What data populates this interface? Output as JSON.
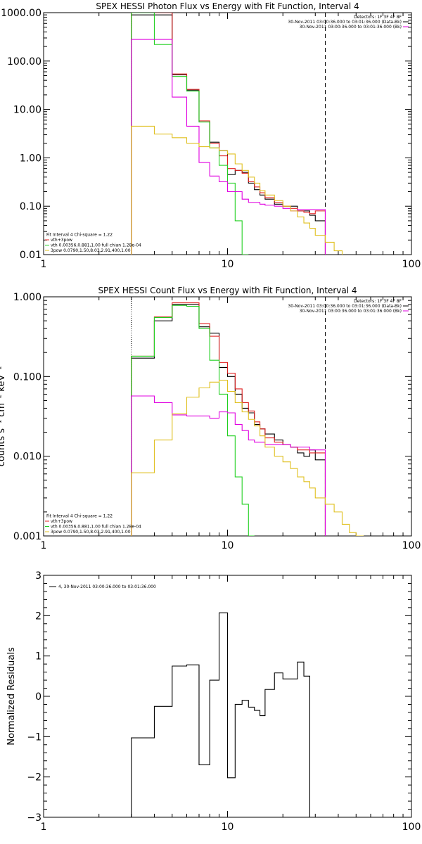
{
  "chart_data": [
    {
      "type": "line",
      "title": "SPEX HESSI Photon Flux vs Energy with Fit Function, Interval 4",
      "xscale": "log",
      "yscale": "log",
      "xlim": [
        1,
        100
      ],
      "ylim": [
        0.01,
        1000
      ],
      "xticks": [
        {
          "v": 1,
          "label": "1"
        },
        {
          "v": 10,
          "label": "10"
        },
        {
          "v": 100,
          "label": "100"
        }
      ],
      "yticks": [
        {
          "v": 0.01,
          "label": "0.01"
        },
        {
          "v": 0.1,
          "label": "0.10"
        },
        {
          "v": 1,
          "label": "1.00"
        },
        {
          "v": 10,
          "label": "10.00"
        },
        {
          "v": 100,
          "label": "100.00"
        },
        {
          "v": 1000,
          "label": "1000.00"
        }
      ],
      "legend_top_right": [
        "Detectors: 1F 3F 4F 8F",
        "30-Nov-2011 03:00:36.000 to 03:01:36.000 (Data-Bk)",
        "30-Nov-2011 03:00:36.000 to 03:01:36.000 (Bk)"
      ],
      "legend_top_right_colors": [
        null,
        "#000000",
        "#e000e0"
      ],
      "legend_bottom_left": [
        "Fit Interval 4   Chi-square = 1.22",
        "vth+3pow",
        "vth 0.00356,0.881,1.00   full chian 1.28e-04",
        "3pow 0.0790,1.50,8.03,2.91,400,1.00"
      ],
      "legend_bottom_left_colors": [
        null,
        "#e02020",
        "#20d020",
        "#e0c020"
      ],
      "vlines": [
        {
          "x": 3,
          "style": "dotted"
        },
        {
          "x": 34,
          "style": "dashed"
        }
      ],
      "edges": [
        3,
        4,
        5,
        6,
        7,
        8,
        9,
        10,
        11,
        12,
        13,
        14,
        15,
        16,
        18,
        20,
        22,
        24,
        26,
        28,
        30,
        34,
        38,
        42,
        46
      ],
      "series": [
        {
          "color": "#000000",
          "values": [
            900,
            900,
            52,
            25,
            5.5,
            2.1,
            1.4,
            0.45,
            0.55,
            0.5,
            0.3,
            0.22,
            0.17,
            0.14,
            0.11,
            0.1,
            0.1,
            0.08,
            0.08,
            0.065,
            0.05,
            null,
            null,
            null
          ]
        },
        {
          "color": "#e02020",
          "values": [
            1000,
            1000,
            54,
            26,
            5.8,
            2.0,
            1.1,
            0.6,
            0.55,
            0.48,
            0.32,
            0.25,
            0.19,
            0.15,
            0.12,
            0.1,
            0.09,
            0.08,
            0.075,
            0.07,
            0.08,
            null,
            null,
            null
          ]
        },
        {
          "color": "#20d020",
          "values": [
            1000,
            220,
            48,
            24,
            5.5,
            1.6,
            0.7,
            0.3,
            0.05,
            0.01,
            null,
            null,
            null,
            null,
            null,
            null,
            null,
            null,
            null,
            null,
            null,
            null,
            null,
            null
          ]
        },
        {
          "color": "#e000e0",
          "values": [
            280,
            280,
            18,
            4.5,
            0.8,
            0.42,
            0.32,
            0.2,
            0.2,
            0.14,
            0.12,
            0.12,
            0.11,
            0.105,
            0.1,
            0.09,
            0.08,
            0.085,
            0.085,
            0.085,
            0.085,
            null,
            null,
            null
          ]
        },
        {
          "color": "#e0c020",
          "values": [
            4.5,
            3.1,
            2.6,
            2.0,
            1.7,
            1.6,
            1.4,
            1.2,
            0.75,
            0.55,
            0.4,
            0.3,
            0.21,
            0.17,
            0.13,
            0.1,
            0.08,
            0.06,
            0.045,
            0.035,
            0.025,
            0.018,
            0.012,
            null
          ]
        }
      ]
    },
    {
      "type": "line",
      "title": "SPEX HESSI Count Flux vs Energy with Fit Function, Interval 4",
      "ylabel": "counts s⁻¹ cm⁻² keV⁻¹",
      "xscale": "log",
      "yscale": "log",
      "xlim": [
        1,
        100
      ],
      "ylim": [
        0.001,
        1
      ],
      "xticks": [
        {
          "v": 1,
          "label": "1"
        },
        {
          "v": 10,
          "label": "10"
        },
        {
          "v": 100,
          "label": "100"
        }
      ],
      "yticks": [
        {
          "v": 0.001,
          "label": "0.001"
        },
        {
          "v": 0.01,
          "label": "0.010"
        },
        {
          "v": 0.1,
          "label": "0.100"
        },
        {
          "v": 1,
          "label": "1.000"
        }
      ],
      "legend_top_right": [
        "Detectors: 1F 3F 4F 8F",
        "30-Nov-2011 03:00:36.000 to 03:01:36.000 (Data-Bk)",
        "30-Nov-2011 03:00:36.000 to 03:01:36.000 (Bk)"
      ],
      "legend_top_right_colors": [
        null,
        "#000000",
        "#e000e0"
      ],
      "legend_bottom_left": [
        "Fit Interval 4   Chi-square = 1.22",
        "vth+3pow",
        "vth 0.00356,0.881,1.00   full chian 1.28e-04",
        "3pow 0.0790,1.50,8.03,2.91,400,1.00"
      ],
      "legend_bottom_left_colors": [
        null,
        "#e02020",
        "#20d020",
        "#e0c020"
      ],
      "vlines": [
        {
          "x": 3,
          "style": "dotted"
        },
        {
          "x": 34,
          "style": "dashed"
        }
      ],
      "edges": [
        3,
        4,
        5,
        6,
        7,
        8,
        9,
        10,
        11,
        12,
        13,
        14,
        15,
        16,
        18,
        20,
        22,
        24,
        26,
        28,
        30,
        34,
        38,
        42,
        46,
        50,
        55
      ],
      "series": [
        {
          "color": "#000000",
          "values": [
            0.17,
            0.5,
            0.8,
            0.8,
            0.42,
            0.35,
            0.13,
            0.1,
            0.06,
            0.04,
            0.035,
            0.025,
            0.022,
            0.019,
            0.016,
            0.014,
            0.013,
            0.011,
            0.01,
            0.012,
            0.009,
            null,
            null,
            null,
            null,
            null
          ]
        },
        {
          "color": "#e02020",
          "values": [
            0.18,
            0.56,
            0.84,
            0.84,
            0.46,
            0.32,
            0.15,
            0.11,
            0.07,
            0.047,
            0.037,
            0.027,
            0.022,
            0.017,
            0.015,
            0.014,
            0.013,
            0.012,
            0.012,
            0.011,
            0.011,
            null,
            null,
            null,
            null,
            null
          ]
        },
        {
          "color": "#20d020",
          "values": [
            0.18,
            0.55,
            0.78,
            0.76,
            0.4,
            0.16,
            0.06,
            0.018,
            0.0055,
            0.0025,
            0.001,
            null,
            null,
            null,
            null,
            null,
            null,
            null,
            null,
            null,
            null,
            null,
            null,
            null,
            null,
            null
          ]
        },
        {
          "color": "#e000e0",
          "values": [
            0.057,
            0.047,
            0.033,
            0.032,
            0.032,
            0.03,
            0.036,
            0.035,
            0.025,
            0.021,
            0.016,
            0.015,
            0.015,
            0.014,
            0.014,
            0.014,
            0.013,
            0.013,
            0.013,
            0.012,
            0.012,
            null,
            null,
            null,
            null,
            null
          ]
        },
        {
          "color": "#e0c020",
          "values": [
            0.0062,
            0.016,
            0.034,
            0.055,
            0.072,
            0.085,
            0.09,
            0.065,
            0.047,
            0.036,
            0.029,
            0.024,
            0.018,
            0.013,
            0.01,
            0.0085,
            0.007,
            0.0055,
            0.0048,
            0.004,
            0.003,
            0.0025,
            0.002,
            0.0014,
            0.0011,
            0.0009
          ]
        }
      ]
    },
    {
      "type": "line",
      "ylabel": "Normalized Residuals",
      "xscale": "log",
      "yscale": "linear",
      "xlim": [
        1,
        100
      ],
      "ylim": [
        -3,
        3
      ],
      "xticks": [
        {
          "v": 1,
          "label": "1"
        },
        {
          "v": 10,
          "label": "10"
        },
        {
          "v": 100,
          "label": "100"
        }
      ],
      "yticks": [
        {
          "v": 3,
          "label": "3"
        },
        {
          "v": 2,
          "label": "2"
        },
        {
          "v": 1,
          "label": "1"
        },
        {
          "v": 0,
          "label": "0"
        },
        {
          "v": -1,
          "label": "−1"
        },
        {
          "v": -2,
          "label": "−2"
        },
        {
          "v": -3,
          "label": "−3"
        }
      ],
      "legend_top_left": [
        "4, 30-Nov-2011 03:00:36.000 to 03:01:36.000"
      ],
      "legend_top_left_colors": [
        "#000000"
      ],
      "edges": [
        3,
        4,
        5,
        6,
        7,
        8,
        9,
        10,
        11,
        12,
        13,
        14,
        15,
        16,
        18,
        20,
        22,
        24,
        26,
        28,
        30,
        34
      ],
      "series": [
        {
          "color": "#000000",
          "values": [
            -1.03,
            -0.25,
            0.75,
            0.78,
            -1.7,
            0.4,
            2.07,
            -2.02,
            -0.2,
            -0.1,
            -0.27,
            -0.35,
            -0.48,
            0.17,
            0.58,
            0.43,
            0.43,
            0.85,
            0.5,
            null,
            null
          ],
          "drop_left": true,
          "drop_right": true
        }
      ]
    }
  ]
}
